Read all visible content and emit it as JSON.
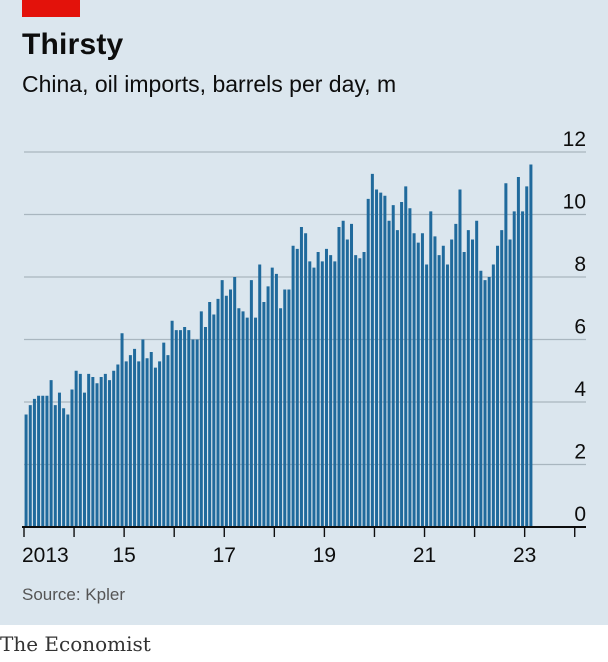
{
  "header": {
    "title": "Thirsty",
    "subtitle": "China, oil imports, barrels per day, m"
  },
  "footer": {
    "source": "Source: Kpler",
    "brand": "The Economist"
  },
  "colors": {
    "bar": "#206a9c",
    "accent": "#e3120b",
    "background": "#dbe6ee",
    "gridline": "#a9b6bf",
    "axis": "#0d0d0d"
  },
  "chart_data": {
    "type": "bar",
    "title": "Thirsty",
    "subtitle": "China, oil imports, barrels per day, m",
    "frequency": "monthly",
    "start": "2013-01",
    "x_tick_labels": [
      "2013",
      "15",
      "17",
      "19",
      "21",
      "23"
    ],
    "y_ticks": [
      0,
      2,
      4,
      6,
      8,
      10,
      12
    ],
    "ylim": [
      0,
      12
    ],
    "grid": true,
    "y_axis_side": "right",
    "values": [
      3.6,
      3.9,
      4.1,
      4.2,
      4.2,
      4.2,
      4.7,
      3.9,
      4.3,
      3.8,
      3.6,
      4.4,
      5.0,
      4.9,
      4.3,
      4.9,
      4.8,
      4.6,
      4.8,
      4.9,
      4.7,
      5.0,
      5.2,
      6.2,
      5.3,
      5.5,
      5.7,
      5.3,
      6.0,
      5.4,
      5.6,
      5.1,
      5.3,
      5.9,
      5.5,
      6.6,
      6.3,
      6.3,
      6.4,
      6.3,
      6.0,
      6.0,
      6.9,
      6.4,
      7.2,
      6.8,
      7.3,
      7.9,
      7.4,
      7.6,
      8.0,
      7.0,
      6.9,
      6.7,
      7.9,
      6.7,
      8.4,
      7.2,
      7.7,
      8.3,
      8.1,
      7.0,
      7.6,
      7.6,
      9.0,
      8.9,
      9.6,
      9.4,
      8.5,
      8.3,
      8.8,
      8.5,
      8.9,
      8.7,
      8.5,
      9.6,
      9.8,
      9.2,
      9.7,
      8.7,
      8.6,
      8.8,
      10.5,
      11.3,
      10.8,
      10.7,
      10.6,
      9.8,
      10.3,
      9.5,
      10.4,
      10.9,
      10.2,
      9.4,
      9.1,
      9.4,
      8.4,
      10.1,
      9.3,
      8.7,
      9.0,
      8.4,
      9.2,
      9.7,
      10.8,
      8.8,
      9.5,
      9.2,
      9.8,
      8.2,
      7.9,
      8.0,
      8.4,
      9.0,
      9.5,
      11.0,
      9.2,
      10.1,
      11.2,
      10.1,
      10.9,
      11.6
    ]
  }
}
